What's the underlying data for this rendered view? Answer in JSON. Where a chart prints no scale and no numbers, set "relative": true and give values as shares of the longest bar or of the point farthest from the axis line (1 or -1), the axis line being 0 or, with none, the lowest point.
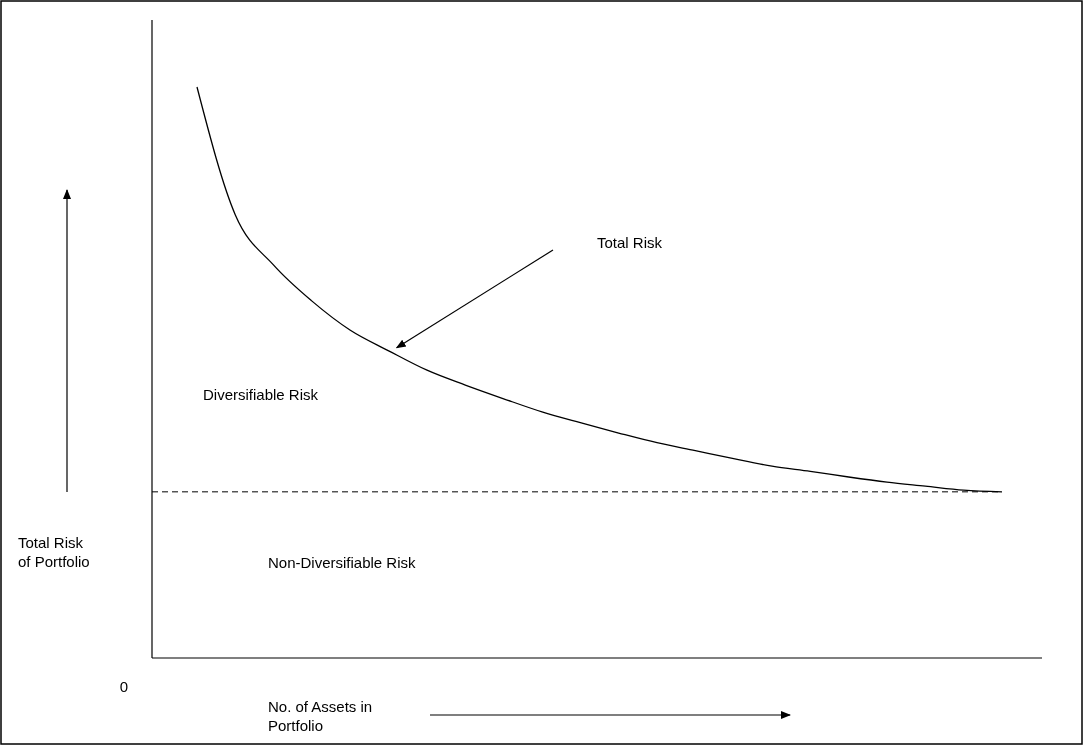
{
  "chart_data": {
    "type": "line",
    "relative": true,
    "xlabel": "No. of Assets in\nPortfolio",
    "ylabel": "Total Risk\nof Portfolio",
    "categories": [
      null,
      null,
      null,
      null,
      null,
      null,
      null,
      null,
      null,
      null,
      null,
      null,
      null,
      null,
      null,
      null,
      null,
      null,
      null,
      null,
      null,
      null
    ],
    "series": [
      {
        "color": "#000000",
        "values": [
          1.0,
          0.776,
          0.688,
          0.625,
          0.574,
          0.538,
          0.504,
          0.478,
          0.454,
          0.431,
          0.412,
          0.394,
          0.377,
          0.363,
          0.349,
          0.336,
          0.327,
          0.317,
          0.308,
          0.301,
          0.294,
          0.291
        ]
      }
    ],
    "ref_lines": [
      {
        "axis": "y",
        "value": 0.291,
        "label": "Non-Diversifiable Risk",
        "color": "#000000",
        "line_style": "dashed"
      }
    ],
    "annotations": [
      "0",
      "Total Risk",
      "Diversifiable Risk"
    ],
    "marker": "none",
    "line_style": "solid"
  }
}
